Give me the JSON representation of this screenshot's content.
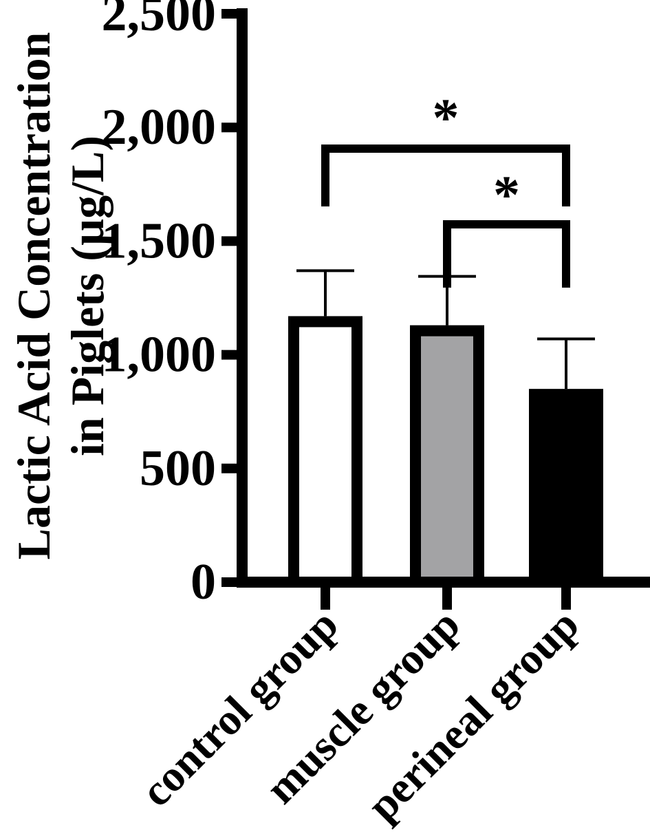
{
  "chart_data": {
    "type": "bar",
    "title": "",
    "ylabel_lines": [
      "Lactic Acid Concentration",
      "in Piglets (µg/L)"
    ],
    "categories": [
      "control group",
      "muscle group",
      "perineal group"
    ],
    "values": [
      1170,
      1130,
      850
    ],
    "errors": [
      200,
      215,
      220
    ],
    "ylim": [
      0,
      2500
    ],
    "yticks": [
      0,
      500,
      1000,
      1500,
      2000,
      2500
    ],
    "ytick_labels": [
      "0",
      "500",
      "1,000",
      "1,500",
      "2,000",
      "2,500"
    ],
    "bar_fills": [
      "#ffffff",
      "#a3a3a5",
      "#000000"
    ],
    "significance": [
      {
        "from": 0,
        "to": 2,
        "label": "*"
      },
      {
        "from": 1,
        "to": 2,
        "label": "*"
      }
    ],
    "grid": false,
    "legend": "none"
  }
}
